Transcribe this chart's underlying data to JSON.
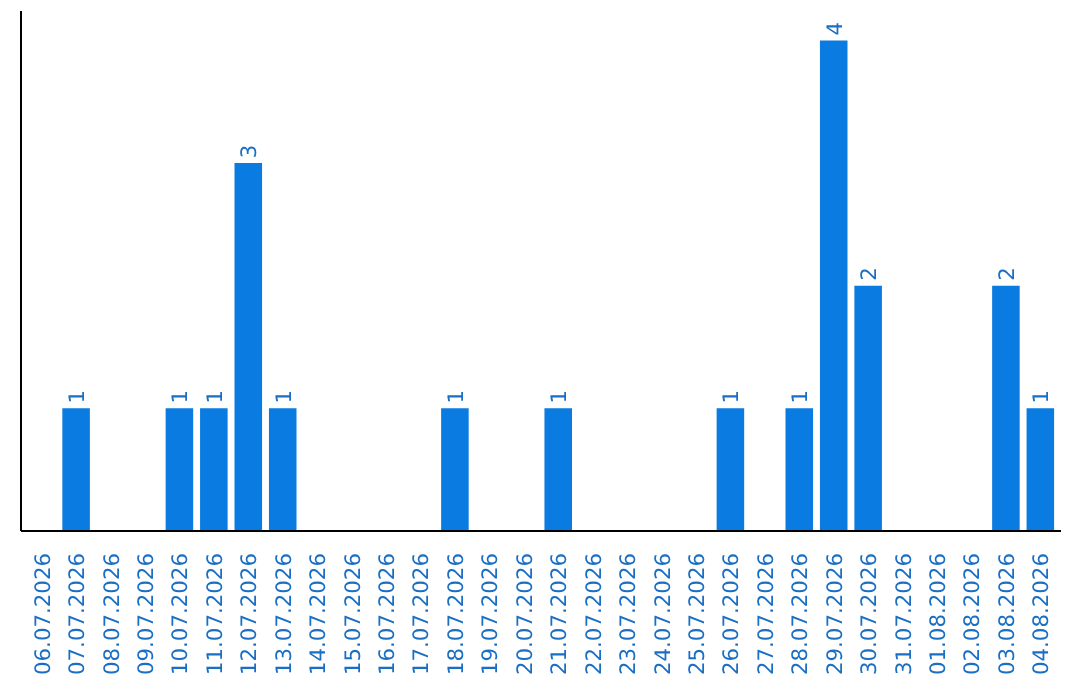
{
  "chart_data": {
    "type": "bar",
    "categories": [
      "06.07.2026",
      "07.07.2026",
      "08.07.2026",
      "09.07.2026",
      "10.07.2026",
      "11.07.2026",
      "12.07.2026",
      "13.07.2026",
      "14.07.2026",
      "15.07.2026",
      "16.07.2026",
      "17.07.2026",
      "18.07.2026",
      "19.07.2026",
      "20.07.2026",
      "21.07.2026",
      "22.07.2026",
      "23.07.2026",
      "24.07.2026",
      "25.07.2026",
      "26.07.2026",
      "27.07.2026",
      "28.07.2026",
      "29.07.2026",
      "30.07.2026",
      "31.07.2026",
      "01.08.2026",
      "02.08.2026",
      "03.08.2026",
      "04.08.2026"
    ],
    "values": [
      0,
      1,
      0,
      0,
      1,
      1,
      3,
      1,
      0,
      0,
      0,
      0,
      1,
      0,
      0,
      1,
      0,
      0,
      0,
      0,
      1,
      0,
      1,
      4,
      2,
      0,
      0,
      0,
      2,
      1
    ],
    "value_labels": [
      null,
      "1",
      null,
      null,
      "1",
      "1",
      "3",
      "1",
      null,
      null,
      null,
      null,
      "1",
      null,
      null,
      "1",
      null,
      null,
      null,
      null,
      "1",
      null,
      "1",
      "4",
      "2",
      null,
      null,
      null,
      "2",
      "1"
    ],
    "color": "#0a7be0",
    "grid": false,
    "tick_labels": "x"
  }
}
